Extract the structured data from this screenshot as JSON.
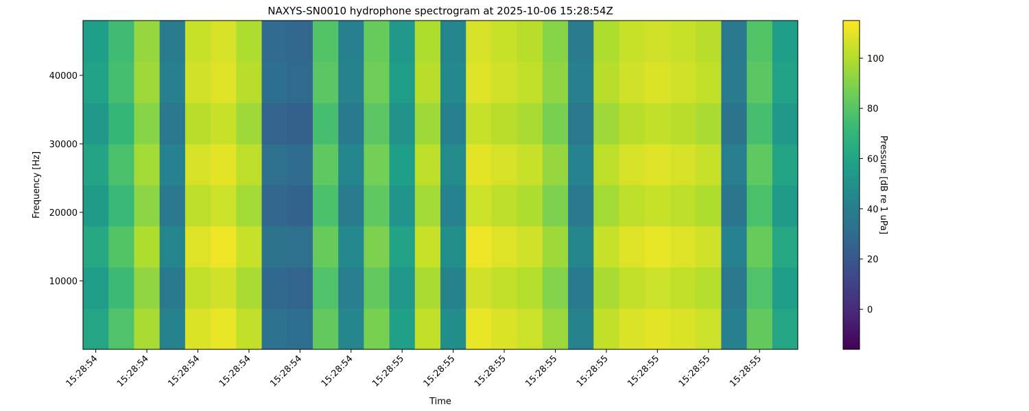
{
  "chart_data": {
    "type": "spectrogram",
    "title": "NAXYS-SN0010 hydrophone spectrogram at 2025-10-06 15:28:54Z",
    "x_label": "Time",
    "y_label": "Frequency [Hz]",
    "colorbar_label": "Pressure [dB re 1 uPa]",
    "xlim": [
      0,
      28
    ],
    "ylim": [
      0,
      48000
    ],
    "xticks": [
      {
        "value": 0.5,
        "label": "15:28:54"
      },
      {
        "value": 2.5,
        "label": "15:28:54"
      },
      {
        "value": 4.5,
        "label": "15:28:54"
      },
      {
        "value": 6.5,
        "label": "15:28:54"
      },
      {
        "value": 8.5,
        "label": "15:28:54"
      },
      {
        "value": 10.5,
        "label": "15:28:54"
      },
      {
        "value": 12.5,
        "label": "15:28:55"
      },
      {
        "value": 14.5,
        "label": "15:28:55"
      },
      {
        "value": 16.5,
        "label": "15:28:55"
      },
      {
        "value": 18.5,
        "label": "15:28:55"
      },
      {
        "value": 20.5,
        "label": "15:28:55"
      },
      {
        "value": 22.5,
        "label": "15:28:55"
      },
      {
        "value": 24.5,
        "label": "15:28:55"
      },
      {
        "value": 26.5,
        "label": "15:28:55"
      }
    ],
    "yticks": [
      10000,
      20000,
      30000,
      40000
    ],
    "y_bins": [
      0,
      6000,
      12000,
      18000,
      24000,
      30000,
      36000,
      42000,
      48000
    ],
    "clim": [
      -16,
      115
    ],
    "cticks": [
      0,
      20,
      40,
      60,
      80,
      100
    ],
    "colormap": [
      "#440154",
      "#482878",
      "#3e4989",
      "#31688e",
      "#26828e",
      "#1f9e89",
      "#35b779",
      "#6ece58",
      "#b5de2b",
      "#fde725"
    ],
    "z": [
      [
        61,
        78,
        98,
        43,
        108,
        111,
        103,
        33,
        31,
        83,
        45,
        88,
        58,
        103,
        48,
        111,
        108,
        105,
        95,
        43,
        103,
        108,
        110,
        108,
        105,
        41,
        83,
        61
      ],
      [
        56,
        73,
        93,
        38,
        103,
        106,
        98,
        28,
        26,
        78,
        40,
        83,
        53,
        98,
        43,
        106,
        103,
        100,
        90,
        38,
        98,
        103,
        105,
        103,
        100,
        36,
        78,
        56
      ],
      [
        62,
        79,
        99,
        44,
        109,
        112,
        104,
        34,
        32,
        84,
        46,
        89,
        59,
        104,
        49,
        112,
        109,
        106,
        96,
        44,
        104,
        109,
        111,
        109,
        106,
        42,
        84,
        62
      ],
      [
        55,
        72,
        92,
        37,
        102,
        105,
        97,
        27,
        25,
        77,
        39,
        82,
        52,
        97,
        42,
        105,
        102,
        99,
        89,
        37,
        97,
        102,
        104,
        102,
        99,
        35,
        77,
        55
      ],
      [
        60,
        77,
        97,
        42,
        107,
        110,
        102,
        32,
        30,
        82,
        44,
        87,
        57,
        102,
        47,
        110,
        107,
        104,
        94,
        42,
        102,
        107,
        109,
        107,
        104,
        40,
        82,
        60
      ],
      [
        54,
        71,
        91,
        36,
        101,
        104,
        96,
        26,
        24,
        76,
        38,
        81,
        51,
        96,
        41,
        104,
        101,
        98,
        88,
        36,
        96,
        101,
        103,
        101,
        98,
        34,
        76,
        54
      ],
      [
        59,
        76,
        96,
        41,
        106,
        109,
        101,
        31,
        29,
        81,
        43,
        86,
        56,
        101,
        46,
        109,
        106,
        103,
        93,
        41,
        101,
        106,
        108,
        106,
        103,
        39,
        81,
        59
      ],
      [
        57,
        74,
        94,
        39,
        104,
        107,
        99,
        29,
        27,
        79,
        41,
        84,
        54,
        99,
        44,
        107,
        104,
        101,
        91,
        39,
        99,
        104,
        106,
        104,
        101,
        37,
        79,
        57
      ]
    ]
  }
}
